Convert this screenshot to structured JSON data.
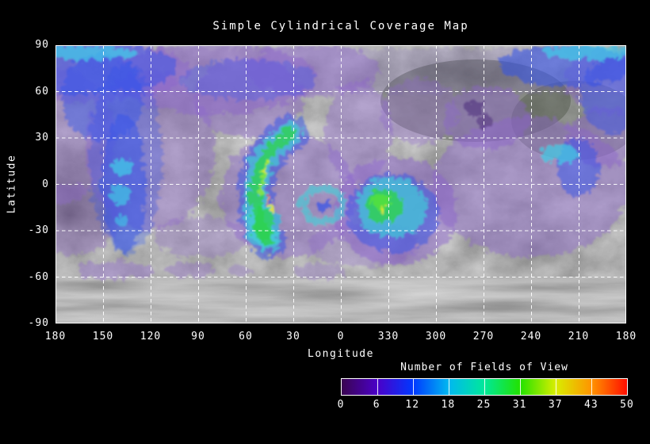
{
  "window": {
    "background": "#000000",
    "text_color": "#ffffff"
  },
  "chart_data": {
    "type": "heatmap",
    "projection": "simple cylindrical",
    "title": "Simple Cylindrical Coverage Map",
    "xlabel": "Longitude",
    "ylabel": "Latitude",
    "x_tick_labels": [
      "180",
      "150",
      "120",
      "90",
      "60",
      "30",
      "0",
      "330",
      "300",
      "270",
      "240",
      "210",
      "180"
    ],
    "x_tick_values": [
      180,
      150,
      120,
      90,
      60,
      30,
      0,
      330,
      300,
      270,
      240,
      210,
      180
    ],
    "y_tick_labels": [
      "90",
      "60",
      "30",
      "0",
      "-30",
      "-60",
      "-90"
    ],
    "y_tick_values": [
      90,
      60,
      30,
      0,
      -30,
      -60,
      -90
    ],
    "xlim_note": "longitude wraps left-to-right 180 -> 0 -> 180 degrees",
    "ylim": [
      -90,
      90
    ],
    "grid": "white dashed lines every 30 degrees",
    "basemap": "grayscale planetary surface mosaic (Vesta-like), bare in south polar region",
    "colorbar": {
      "title": "Number of Fields of View",
      "tick_labels": [
        "0",
        "6",
        "12",
        "18",
        "25",
        "31",
        "37",
        "43",
        "50"
      ],
      "tick_values": [
        0,
        6,
        12,
        18,
        25,
        31,
        37,
        43,
        50
      ],
      "range": [
        0,
        50
      ],
      "segment_colors": [
        "#3a0550",
        "#4b00c8",
        "#0038ff",
        "#00b8f0",
        "#00e89a",
        "#22e200",
        "#d8ee00",
        "#ff9400",
        "#ff0e00"
      ],
      "style": "continuous rainbow bar, white border, white divider line at each labeled tick"
    },
    "coverage_regions": [
      {
        "feature": "crescent swath",
        "lon_deg": "62 to 30",
        "lat_deg": "32 to -42",
        "value_fov": "core 18-31 (green/cyan), streaks 31-43 (yellow), speck ~45-50 (red), halo 6-12 (blue) and 1-6 (purple)"
      },
      {
        "feature": "equatorial blob",
        "lon_deg": "355 to 305",
        "lat_deg": "5 to -40",
        "value_fov": "core 18-31 (green) with ~31-37 yellow speck, cyan/blue fringe 6-18, purple halo 1-6"
      },
      {
        "feature": "ring patch",
        "lon_deg": "27 to 3",
        "lat_deg": "3 to -25",
        "value_fov": "cyan ring 12-18 around blue/purple center 6-12"
      },
      {
        "feature": "western band",
        "lon_deg": "160 to 118",
        "lat_deg": "70 to -40",
        "value_fov": "blue 6-12 with cyan patches 12-18 near equator"
      },
      {
        "feature": "eastern crater patch",
        "lon_deg": "235 to 180",
        "lat_deg": "32 to -30",
        "value_fov": "purple-blue 1-12, bright cyan 12-18 near lon 197 lat -8"
      },
      {
        "feature": "north polar band",
        "lon_deg": "all longitudes",
        "lat_deg": "90 to 55",
        "value_fov": "purple/blue 1-12; cyan strips ~15 at top edge near lon 160 and lon 200"
      },
      {
        "feature": "scattered patches",
        "lon_deg": "various",
        "lat_deg": "45 to -50",
        "value_fov": "purple 1-6"
      },
      {
        "feature": "south polar region",
        "lon_deg": "all longitudes",
        "lat_deg": "-50 to -90",
        "value_fov": "0 (no coverage, bare basemap)"
      }
    ]
  }
}
